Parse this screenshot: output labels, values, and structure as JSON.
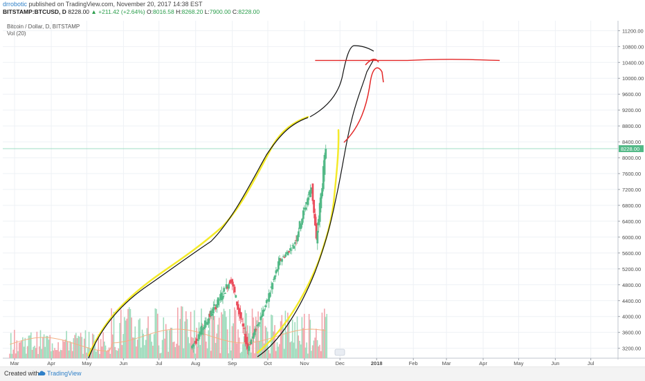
{
  "header": {
    "author": "drrobotic",
    "published_text": "published on TradingView.com, November 20, 2017 14:38 EST",
    "ticker_line": "BITSTAMP:BTCUSD, D",
    "last": "8228.00",
    "change_arrow": "▲",
    "change": "+211.42 (+2.64%)",
    "o_label": "O:",
    "o_value": "8016.58",
    "h_label": "H:",
    "h_value": "8268.20",
    "l_label": "L:",
    "l_value": "7900.00",
    "c_label": "C:",
    "c_value": "8228.00"
  },
  "legend": {
    "series_label": "Bitcoin / Dollar, D, BITSTAMP",
    "volume_label": "Vol (20)"
  },
  "footer": {
    "created_with": "Created with",
    "brand": "TradingView"
  },
  "colors": {
    "up": "#53b987",
    "down": "#eb4d5c",
    "vol_up": "#9fdcbd",
    "vol_down": "#f2a4ab",
    "yellow": "#f4ea2a",
    "red": "#e32626",
    "price_line": "#7fd3b0",
    "ma": "#f4b183",
    "grid": "#eef1f5"
  },
  "chart_data": {
    "type": "candlestick",
    "title": "Bitcoin / Dollar, D, BITSTAMP",
    "x_ticks": [
      "Mar",
      "Apr",
      "May",
      "Jun",
      "Jul",
      "Aug",
      "Sep",
      "Oct",
      "Nov",
      "Dec",
      "2018",
      "Feb",
      "Mar",
      "Apr",
      "May",
      "Jun",
      "Jul"
    ],
    "x_start": "2017-02-19",
    "x_end": "2018-07-24",
    "y_ticks": [
      3200,
      3600,
      4000,
      4400,
      4800,
      5200,
      5600,
      6000,
      6400,
      6800,
      7200,
      7600,
      8000,
      8400,
      8800,
      9200,
      9600,
      10000,
      10400,
      10800,
      11200
    ],
    "ylim": [
      2950,
      11450
    ],
    "last_price": 8228.0,
    "last_price_label": "8228.00",
    "visible_price_segments": [
      {
        "from": "2017-07-29",
        "to": "2017-09-01",
        "start": 3200,
        "end": 4950,
        "min": 3200,
        "max": 4980
      },
      {
        "from": "2017-09-01",
        "to": "2017-09-15",
        "start": 4950,
        "end": 3200,
        "min": 3000,
        "max": 4950
      },
      {
        "from": "2017-09-15",
        "to": "2017-10-01",
        "start": 3200,
        "end": 4350,
        "min": 3200,
        "max": 4400
      },
      {
        "from": "2017-10-01",
        "to": "2017-10-12",
        "start": 4350,
        "end": 5400,
        "min": 4200,
        "max": 5900
      },
      {
        "from": "2017-10-12",
        "to": "2017-10-24",
        "start": 5400,
        "end": 5800,
        "min": 5200,
        "max": 6200
      },
      {
        "from": "2017-10-24",
        "to": "2017-11-08",
        "start": 5800,
        "end": 7300,
        "min": 5700,
        "max": 7600
      },
      {
        "from": "2017-11-08",
        "to": "2017-11-12",
        "start": 7300,
        "end": 5900,
        "min": 5600,
        "max": 7400
      },
      {
        "from": "2017-11-12",
        "to": "2017-11-20",
        "start": 5900,
        "end": 8228,
        "min": 5800,
        "max": 8268
      }
    ],
    "volume_note": "Vol (20)",
    "annotations": [
      {
        "type": "horizontal-line",
        "color": "red",
        "y": 10450,
        "from": "2017-11-10",
        "to": "2018-04-15"
      }
    ]
  }
}
